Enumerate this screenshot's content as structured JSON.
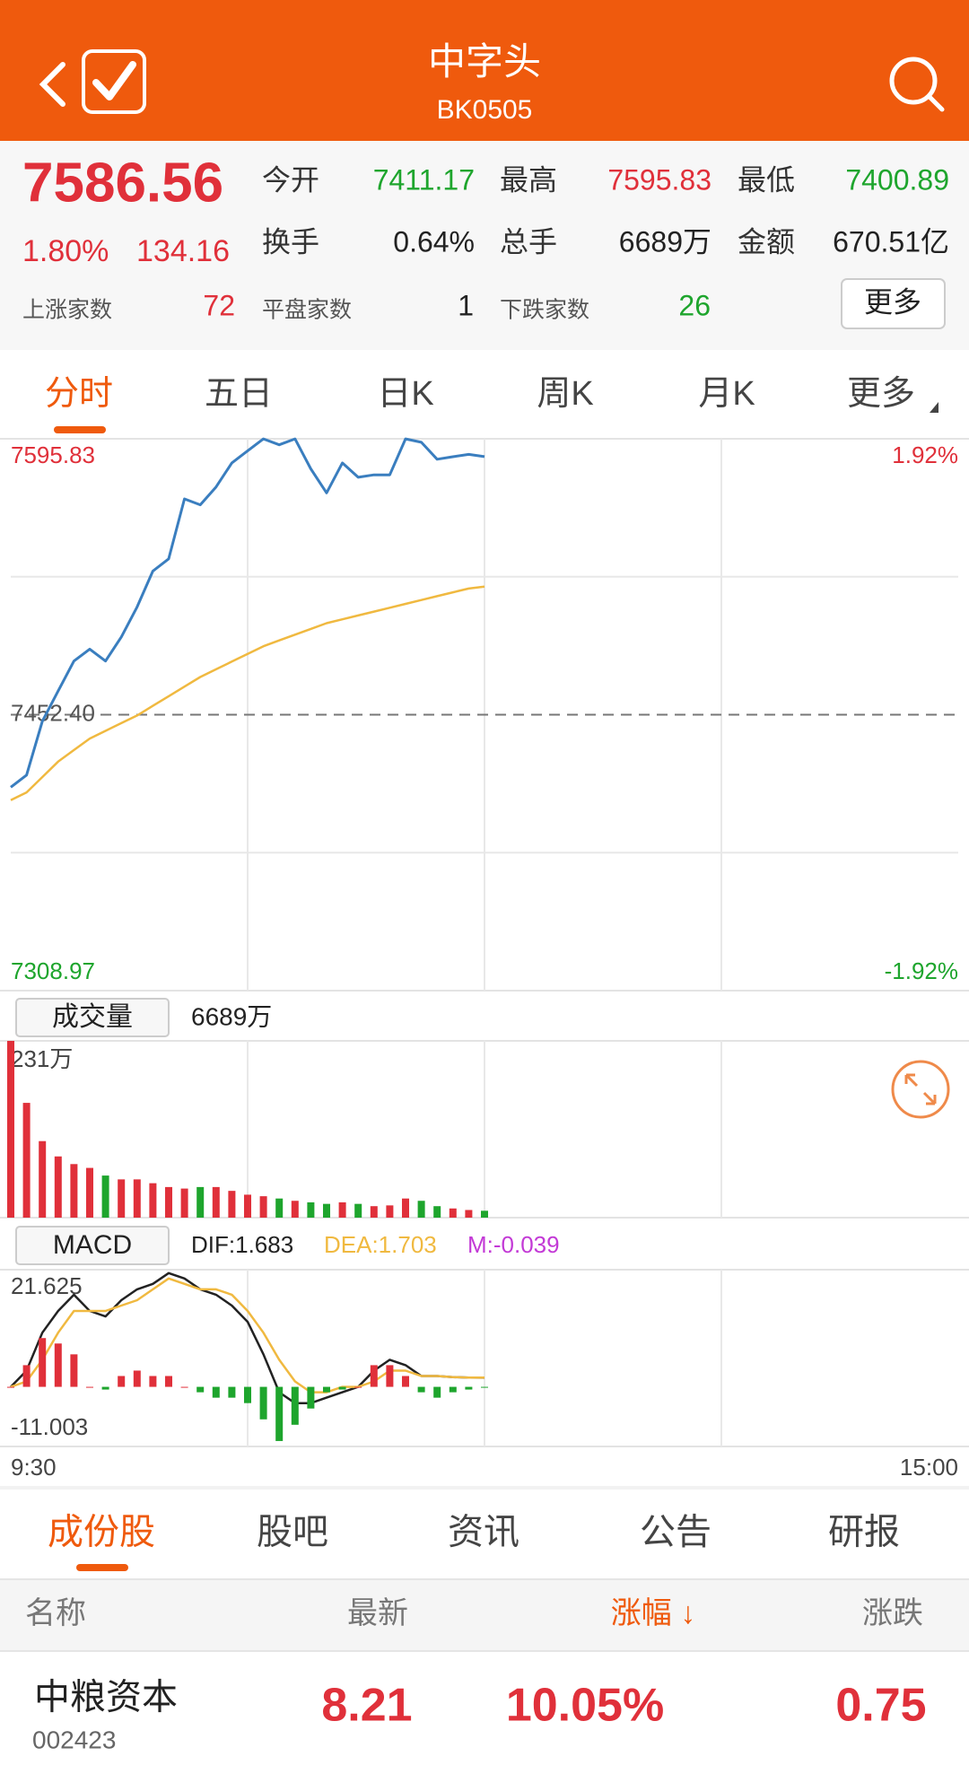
{
  "header": {
    "title": "中字头",
    "code": "BK0505"
  },
  "quote": {
    "price": "7586.56",
    "change_pct": "1.80%",
    "change": "134.16",
    "color": "#e0303a",
    "stats": [
      [
        {
          "label": "今开",
          "value": "7411.17",
          "color": "#1ea52d"
        },
        {
          "label": "最高",
          "value": "7595.83",
          "color": "#e0303a"
        },
        {
          "label": "最低",
          "value": "7400.89",
          "color": "#1ea52d"
        }
      ],
      [
        {
          "label": "换手",
          "value": "0.64%",
          "color": "#222222"
        },
        {
          "label": "总手",
          "value": "6689万",
          "color": "#222222"
        },
        {
          "label": "金额",
          "value": "670.51亿",
          "color": "#222222"
        }
      ]
    ],
    "breadth": [
      {
        "label": "上涨家数",
        "value": "72",
        "color": "#e0303a"
      },
      {
        "label": "平盘家数",
        "value": "1",
        "color": "#222222"
      },
      {
        "label": "下跌家数",
        "value": "26",
        "color": "#1ea52d"
      }
    ],
    "more_button": "更多"
  },
  "tabs": [
    "分时",
    "五日",
    "日K",
    "周K",
    "月K",
    "更多"
  ],
  "chart_data": [
    {
      "type": "line",
      "xlim": [
        0,
        240
      ],
      "x": [
        0,
        4,
        8,
        12,
        16,
        20,
        24,
        28,
        32,
        36,
        40,
        44,
        48,
        52,
        56,
        60,
        64,
        68,
        72,
        76,
        80,
        84,
        88,
        92,
        96,
        100,
        104,
        108,
        112,
        116,
        120
      ],
      "ylim": [
        7308.97,
        7595.83
      ],
      "yticks": [
        7595.83,
        {
          "value": 7452.4,
          "label": "7452.40"
        },
        7308.97
      ],
      "y2lim": [
        -1.92,
        1.92
      ],
      "y2ticks": [
        {
          "value": 1.92,
          "label": "1.92%"
        },
        {
          "value": -1.92,
          "label": "-1.92%"
        }
      ],
      "series": [
        {
          "color": "#3a7ebf",
          "values": [
            7414.7,
            7421,
            7449,
            7464.7,
            7480.3,
            7486.5,
            7480.3,
            7492.8,
            7508.4,
            7527.1,
            7533.4,
            7564.6,
            7561.5,
            7570.8,
            7583.3,
            7589.6,
            7595.8,
            7592.7,
            7595.8,
            7580.2,
            7567.7,
            7583.3,
            7575.8,
            7577.1,
            7577.1,
            7595.8,
            7594,
            7585.2,
            7586.5,
            7587.7,
            7586.56
          ]
        },
        {
          "color": "#f0b940",
          "values": [
            7408,
            7412,
            7420,
            7428,
            7434,
            7440,
            7444,
            7448,
            7452,
            7457,
            7462,
            7467,
            7472,
            7476,
            7480,
            7484,
            7488,
            7491,
            7494,
            7497,
            7500,
            7502,
            7504,
            7506,
            7508,
            7510,
            7512,
            7514,
            7516,
            7518,
            7519
          ]
        }
      ]
    },
    {
      "type": "bar",
      "title": "成交量",
      "total": "6689万",
      "xlim": [
        0,
        240
      ],
      "x": [
        0,
        4,
        8,
        12,
        16,
        20,
        24,
        28,
        32,
        36,
        40,
        44,
        48,
        52,
        56,
        60,
        64,
        68,
        72,
        76,
        80,
        84,
        88,
        92,
        96,
        100,
        104,
        108,
        112,
        116,
        120
      ],
      "ylim": [
        0,
        231
      ],
      "yticks": [
        {
          "value": 231,
          "label": "231万"
        }
      ],
      "up_color": "#e0303a",
      "down_color": "#1ea52d",
      "values": [
        231,
        150,
        100,
        80,
        70,
        65,
        55,
        50,
        50,
        45,
        40,
        38,
        40,
        40,
        35,
        30,
        28,
        25,
        22,
        20,
        18,
        20,
        18,
        15,
        16,
        25,
        22,
        15,
        12,
        10,
        9
      ]
    },
    {
      "type": "macd",
      "title": "MACD",
      "legend": [
        {
          "label": "DIF:1.683",
          "color": "#222222"
        },
        {
          "label": "DEA:1.703",
          "color": "#f0b940"
        },
        {
          "label": "M:-0.039",
          "color": "#c33ad6"
        }
      ],
      "xlim": [
        0,
        240
      ],
      "xticks": [
        {
          "value": 0,
          "label": "9:30"
        },
        {
          "value": 240,
          "label": "15:00"
        }
      ],
      "x": [
        0,
        4,
        8,
        12,
        16,
        20,
        24,
        28,
        32,
        36,
        40,
        44,
        48,
        52,
        56,
        60,
        64,
        68,
        72,
        76,
        80,
        84,
        88,
        92,
        96,
        100,
        104,
        108,
        112,
        116,
        120
      ],
      "ylim": [
        -11.003,
        21.625
      ],
      "yticks": [
        21.625,
        -11.003
      ],
      "up_color": "#e0303a",
      "down_color": "#1ea52d",
      "series": [
        {
          "color": "#222222",
          "values": [
            0,
            3,
            10,
            14,
            17,
            14,
            13,
            16,
            18,
            19,
            21,
            20,
            18,
            17,
            15,
            12,
            6,
            -1,
            -3,
            -3,
            -2,
            -1,
            0,
            3,
            5,
            4,
            2,
            2,
            1.8,
            1.7,
            1.683
          ]
        },
        {
          "color": "#f0b940",
          "values": [
            0,
            1,
            5,
            10,
            14,
            14,
            14,
            15,
            16,
            18,
            20,
            19,
            18,
            18,
            17,
            14,
            10,
            5,
            1,
            -1,
            -1,
            0,
            0,
            1,
            3,
            3,
            2,
            2,
            1.8,
            1.7,
            1.703
          ]
        },
        {
          "type": "bar",
          "values": [
            0,
            4,
            9,
            8,
            6,
            0,
            -0.5,
            2,
            3,
            2,
            2,
            0,
            -1,
            -2,
            -2,
            -3,
            -6,
            -10,
            -7,
            -4,
            -1,
            -0.5,
            0,
            4,
            4,
            2,
            -1,
            -2,
            -1,
            -0.5,
            -0.039
          ]
        }
      ]
    }
  ],
  "bottom_tabs": [
    "成份股",
    "股吧",
    "资讯",
    "公告",
    "研报"
  ],
  "table": {
    "columns": [
      "名称",
      "最新",
      "涨幅 ↓",
      "涨跌"
    ],
    "rows": [
      {
        "name": "中粮资本",
        "code": "002423",
        "price": "8.21",
        "change_pct": "10.05%",
        "change": "0.75"
      }
    ]
  }
}
